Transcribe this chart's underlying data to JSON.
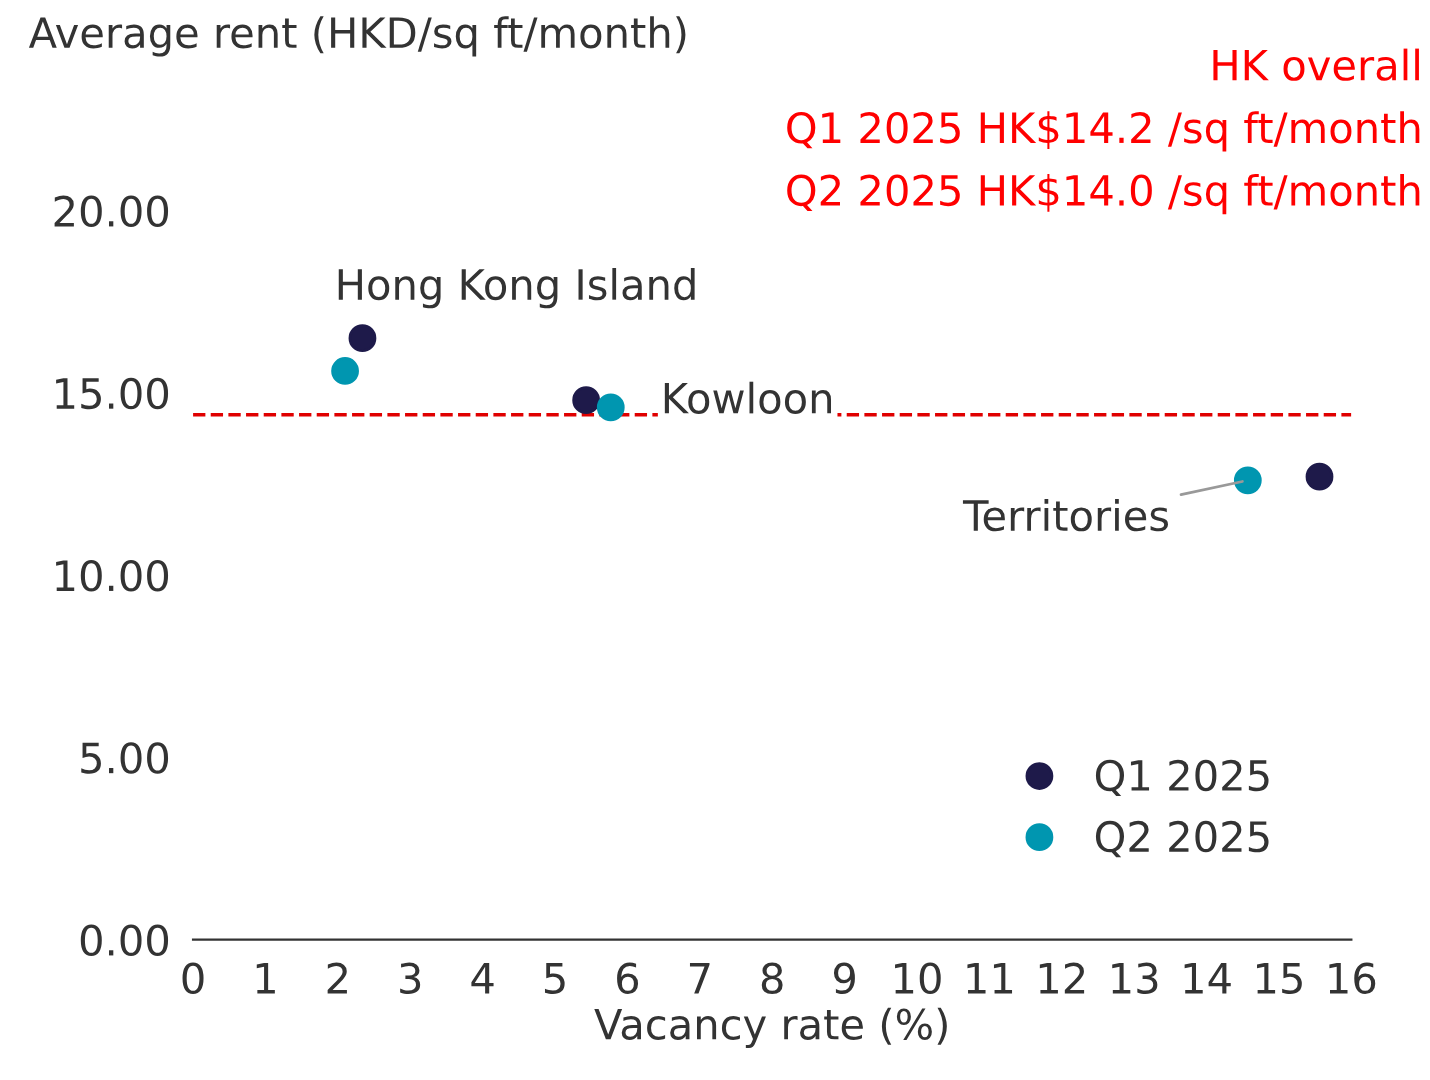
{
  "chart_data": {
    "type": "scatter",
    "xlabel": "Vacancy rate (%)",
    "ylabel": "Average rent (HKD/sq ft/month)",
    "series": [
      {
        "name": "Q1 2025",
        "color": "#1e1a4a",
        "x": [
          2.34,
          5.43,
          15.56
        ],
        "values": [
          16.5,
          14.8,
          12.7
        ]
      },
      {
        "name": "Q2 2025",
        "color": "#0096b0",
        "x": [
          2.1,
          5.77,
          14.57
        ],
        "values": [
          15.6,
          14.6,
          12.6
        ]
      }
    ],
    "xlim": [
      0,
      16
    ],
    "xticks": [
      0,
      1,
      2,
      3,
      4,
      5,
      6,
      7,
      8,
      9,
      10,
      11,
      12,
      13,
      14,
      15,
      16
    ],
    "ylim": [
      0,
      20
    ],
    "yticks": [
      {
        "value": 0,
        "label": "0.00"
      },
      {
        "value": 5,
        "label": "5.00"
      },
      {
        "value": 10,
        "label": "10.00"
      },
      {
        "value": 15,
        "label": "15.00"
      },
      {
        "value": 20,
        "label": "20.00"
      }
    ],
    "ref_lines": [
      {
        "axis": "y",
        "value": 14.4,
        "color": "#e00000",
        "line_style": "dashed"
      }
    ],
    "annotations": [
      {
        "text": "Hong Kong Island",
        "x": 2.34,
        "y": 16.5
      },
      {
        "text": "Kowloon",
        "x": 5.77,
        "y": 14.6
      },
      {
        "text": "Territories",
        "x": 14.57,
        "y": 12.6
      },
      "HK overall",
      "Q1 2025 HK$14.2 /sq ft/month",
      "Q2 2025 HK$14.0 /sq ft/month"
    ],
    "legend": "bottom right",
    "marker": "circle",
    "grid": false
  }
}
